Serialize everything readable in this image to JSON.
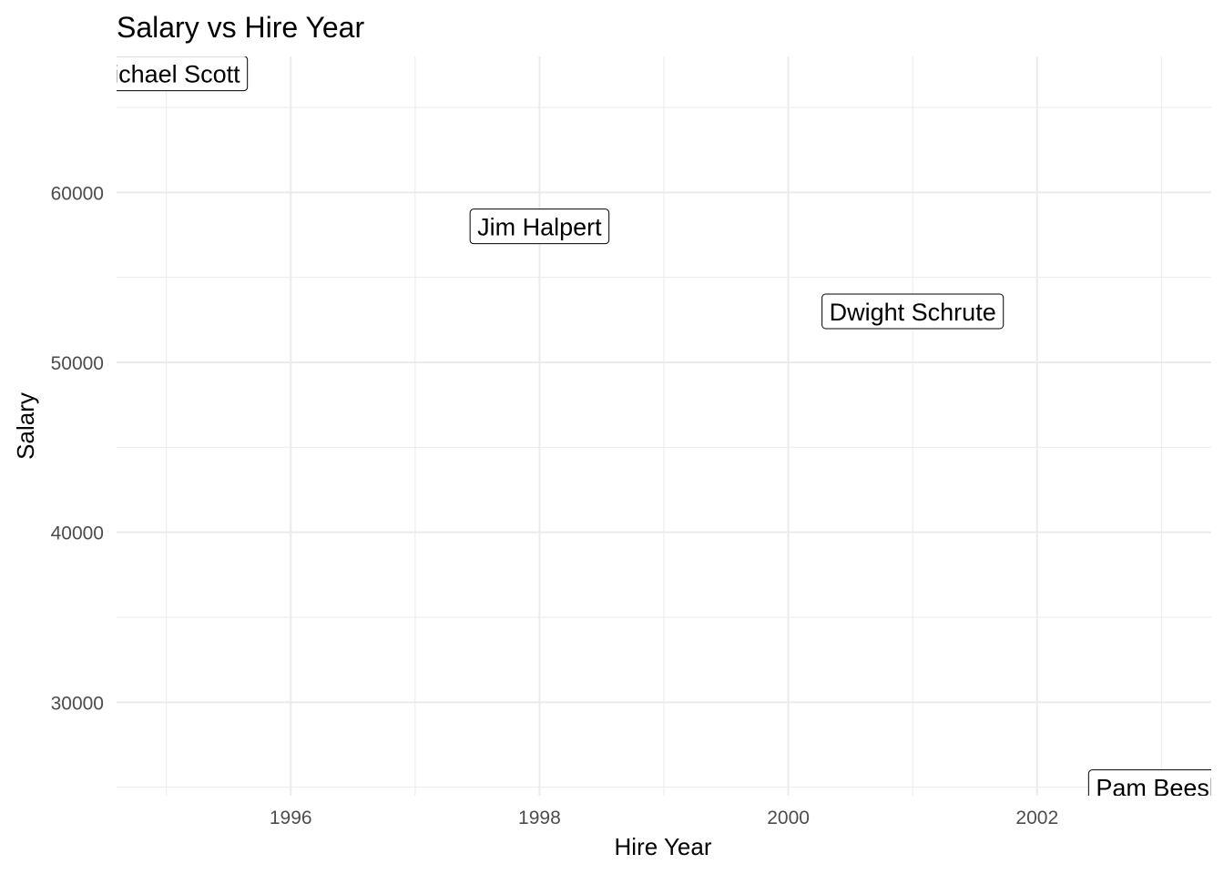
{
  "chart_data": {
    "type": "scatter",
    "title": "Salary vs Hire Year",
    "xlabel": "Hire Year",
    "ylabel": "Salary",
    "xlim": [
      1994.6,
      2003.4
    ],
    "ylim": [
      24500,
      68000
    ],
    "x_ticks": [
      1996,
      1998,
      2000,
      2002
    ],
    "x_minor": [
      1995,
      1997,
      1999,
      2001,
      2003
    ],
    "y_ticks": [
      30000,
      40000,
      50000,
      60000
    ],
    "y_minor": [
      25000,
      35000,
      45000,
      55000,
      65000
    ],
    "grid": true,
    "points": [
      {
        "label": "Michael Scott",
        "x": 1995,
        "y": 67000
      },
      {
        "label": "Jim Halpert",
        "x": 1998,
        "y": 58000
      },
      {
        "label": "Dwight Schrute",
        "x": 2001,
        "y": 53000
      },
      {
        "label": "Pam Beesly",
        "x": 2003,
        "y": 25000
      }
    ]
  }
}
